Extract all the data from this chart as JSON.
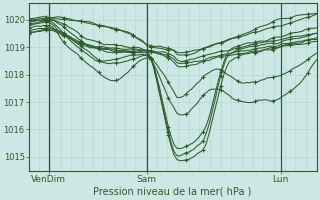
{
  "background_color": "#cde8e4",
  "line_color": "#2d5a2d",
  "marker_color": "#2d5a2d",
  "grid_color_v": "#b0d4ce",
  "grid_color_h": "#b0d4ce",
  "tick_color": "#2d5a2d",
  "text_color": "#2d5a2d",
  "xlabel": "Pression niveau de la mer( hPa )",
  "ylim_low": 1014.5,
  "ylim_high": 1020.6,
  "yticks": [
    1015,
    1016,
    1017,
    1018,
    1019,
    1020
  ],
  "xtick_labels": [
    "VenDim",
    "Sam",
    "Lun"
  ],
  "xtick_positions": [
    0.07,
    0.41,
    0.875
  ],
  "n_vgrid": 28,
  "figsize": [
    3.2,
    2.0
  ],
  "dpi": 100
}
